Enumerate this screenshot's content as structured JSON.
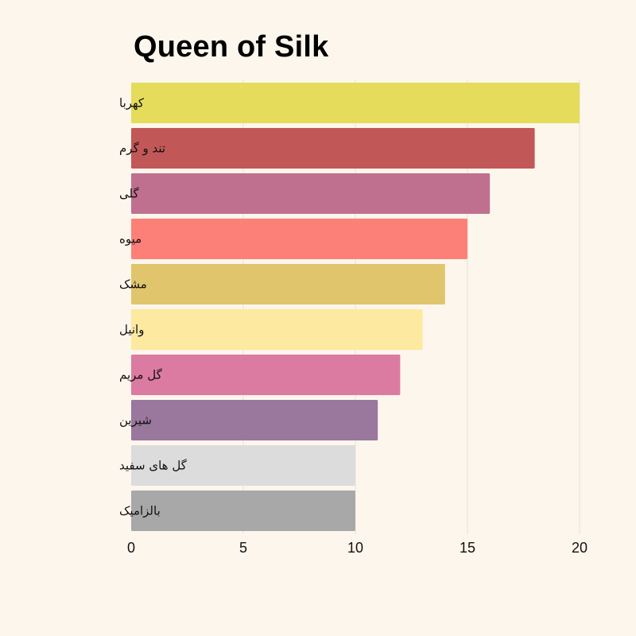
{
  "chart_data": {
    "type": "bar",
    "orientation": "horizontal",
    "title": "Queen of Silk",
    "xlabel": "",
    "ylabel": "",
    "xlim": [
      0,
      20
    ],
    "xticks": [
      0,
      5,
      10,
      15,
      20
    ],
    "grid": true,
    "categories": [
      "کهربا",
      "تند و گرم",
      "گلی",
      "میوه",
      "مشک",
      "وانیل",
      "گل مریم",
      "شیرین",
      "گل های سفید",
      "بالزامیک"
    ],
    "values": [
      20,
      18,
      16,
      15,
      14,
      13,
      12,
      11,
      10,
      10
    ],
    "colors": [
      "#e4dc5a",
      "#c25757",
      "#c0708f",
      "#fd8078",
      "#e0c56d",
      "#fde9a0",
      "#dc7ba1",
      "#9a779d",
      "#dcdcdc",
      "#a8a8a8"
    ]
  }
}
